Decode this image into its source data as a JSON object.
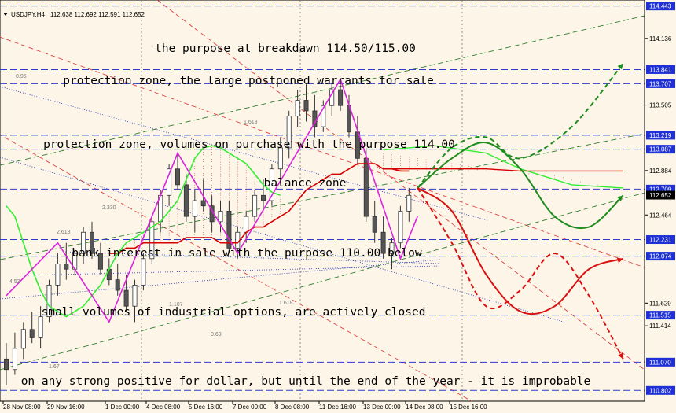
{
  "header": {
    "symbol_label": "USDJPY,H4",
    "ohlc_label": "112.638 112.692 112.591 112.652"
  },
  "annotations": [
    "the purpose at breakdawn 114.50/115.00",
    "protection zone, the large postponed warrants for sale",
    "protection zone, volumes on purchase with the purpose 114.00",
    "balance zone",
    "bank interest in sale with the purpose 110.00 below",
    "small volumes of industrial options, are actively closed",
    "on any strong positive for dollar, but until the end of the year - it is improbable"
  ],
  "fib_labels": [
    "0.95",
    "1.618",
    "2.330",
    "2.618",
    "4.53",
    "1.618",
    "0.69",
    "1.67",
    "1.107"
  ],
  "colors": {
    "background": "#fdf6e8",
    "level_line": "#2b3ccc",
    "level_badge": "#1f31d6",
    "price_badge": "#000000",
    "bull_candle": "#ffffff",
    "bear_candle": "#555555",
    "kijun": "#d80000",
    "tenkan": "#33ee33",
    "wave": "#dd22dd",
    "projection_up": "#1e8c1e",
    "projection_down": "#d81010",
    "trend_red": "#e04040",
    "trend_green": "#2e7d2e",
    "trend_blue": "#3344bb"
  },
  "chart_data": {
    "type": "candlestick",
    "symbol": "USDJPY",
    "timeframe": "H4",
    "price_axis": {
      "ylim": [
        110.7,
        114.5
      ],
      "ticks": [
        114.443,
        114.136,
        113.841,
        113.707,
        113.505,
        113.219,
        113.087,
        112.884,
        112.709,
        112.652,
        112.464,
        112.231,
        112.074,
        111.629,
        111.515,
        111.414,
        111.07,
        110.802
      ]
    },
    "time_labels": [
      "28 Nov 08:00",
      "29 Nov 16:00",
      "1 Dec 00:00",
      "4 Dec 08:00",
      "5 Dec 16:00",
      "7 Dec 00:00",
      "8 Dec 08:00",
      "11 Dec 16:00",
      "13 Dec 00:00",
      "14 Dec 08:00",
      "15 Dec 16:00"
    ],
    "levels": [
      114.443,
      113.841,
      113.707,
      113.219,
      113.087,
      112.709,
      112.231,
      112.074,
      111.515,
      111.07,
      110.802
    ],
    "last_price": 112.652,
    "candles": [
      {
        "o": 111.1,
        "h": 111.25,
        "l": 110.85,
        "c": 111.0
      },
      {
        "o": 111.0,
        "h": 111.35,
        "l": 110.95,
        "c": 111.2
      },
      {
        "o": 111.2,
        "h": 111.45,
        "l": 111.1,
        "c": 111.38
      },
      {
        "o": 111.38,
        "h": 111.55,
        "l": 111.25,
        "c": 111.3
      },
      {
        "o": 111.3,
        "h": 111.6,
        "l": 111.2,
        "c": 111.5
      },
      {
        "o": 111.5,
        "h": 111.85,
        "l": 111.45,
        "c": 111.8
      },
      {
        "o": 111.8,
        "h": 112.1,
        "l": 111.7,
        "c": 112.0
      },
      {
        "o": 112.0,
        "h": 112.2,
        "l": 111.85,
        "c": 111.95
      },
      {
        "o": 111.95,
        "h": 112.15,
        "l": 111.9,
        "c": 112.1
      },
      {
        "o": 112.1,
        "h": 112.35,
        "l": 112.0,
        "c": 112.3
      },
      {
        "o": 112.3,
        "h": 112.4,
        "l": 112.05,
        "c": 112.1
      },
      {
        "o": 112.1,
        "h": 112.2,
        "l": 111.9,
        "c": 111.95
      },
      {
        "o": 111.95,
        "h": 112.05,
        "l": 111.8,
        "c": 111.85
      },
      {
        "o": 111.85,
        "h": 112.0,
        "l": 111.7,
        "c": 111.75
      },
      {
        "o": 111.75,
        "h": 111.9,
        "l": 111.55,
        "c": 111.6
      },
      {
        "o": 111.6,
        "h": 111.85,
        "l": 111.45,
        "c": 111.8
      },
      {
        "o": 111.8,
        "h": 112.1,
        "l": 111.75,
        "c": 112.05
      },
      {
        "o": 112.05,
        "h": 112.45,
        "l": 112.0,
        "c": 112.4
      },
      {
        "o": 112.4,
        "h": 112.7,
        "l": 112.3,
        "c": 112.65
      },
      {
        "o": 112.65,
        "h": 112.95,
        "l": 112.55,
        "c": 112.9
      },
      {
        "o": 112.9,
        "h": 113.05,
        "l": 112.7,
        "c": 112.75
      },
      {
        "o": 112.75,
        "h": 112.85,
        "l": 112.4,
        "c": 112.45
      },
      {
        "o": 112.45,
        "h": 112.7,
        "l": 112.3,
        "c": 112.6
      },
      {
        "o": 112.6,
        "h": 112.8,
        "l": 112.5,
        "c": 112.55
      },
      {
        "o": 112.55,
        "h": 112.65,
        "l": 112.3,
        "c": 112.4
      },
      {
        "o": 112.4,
        "h": 112.6,
        "l": 112.3,
        "c": 112.5
      },
      {
        "o": 112.5,
        "h": 112.6,
        "l": 112.1,
        "c": 112.15
      },
      {
        "o": 112.15,
        "h": 112.35,
        "l": 112.05,
        "c": 112.3
      },
      {
        "o": 112.3,
        "h": 112.5,
        "l": 112.2,
        "c": 112.45
      },
      {
        "o": 112.45,
        "h": 112.7,
        "l": 112.4,
        "c": 112.65
      },
      {
        "o": 112.65,
        "h": 112.8,
        "l": 112.5,
        "c": 112.6
      },
      {
        "o": 112.6,
        "h": 112.95,
        "l": 112.55,
        "c": 112.9
      },
      {
        "o": 112.9,
        "h": 113.2,
        "l": 112.8,
        "c": 113.1
      },
      {
        "o": 113.1,
        "h": 113.45,
        "l": 113.0,
        "c": 113.4
      },
      {
        "o": 113.4,
        "h": 113.65,
        "l": 113.3,
        "c": 113.55
      },
      {
        "o": 113.55,
        "h": 113.7,
        "l": 113.35,
        "c": 113.45
      },
      {
        "o": 113.45,
        "h": 113.6,
        "l": 113.2,
        "c": 113.3
      },
      {
        "o": 113.3,
        "h": 113.55,
        "l": 113.25,
        "c": 113.5
      },
      {
        "o": 113.5,
        "h": 113.72,
        "l": 113.4,
        "c": 113.65
      },
      {
        "o": 113.65,
        "h": 113.75,
        "l": 113.45,
        "c": 113.5
      },
      {
        "o": 113.5,
        "h": 113.6,
        "l": 113.2,
        "c": 113.25
      },
      {
        "o": 113.25,
        "h": 113.4,
        "l": 112.95,
        "c": 113.0
      },
      {
        "o": 113.0,
        "h": 113.1,
        "l": 112.4,
        "c": 112.45
      },
      {
        "o": 112.45,
        "h": 112.6,
        "l": 112.2,
        "c": 112.3
      },
      {
        "o": 112.3,
        "h": 112.45,
        "l": 112.05,
        "c": 112.1
      },
      {
        "o": 112.1,
        "h": 112.25,
        "l": 111.95,
        "c": 112.2
      },
      {
        "o": 112.2,
        "h": 112.55,
        "l": 112.15,
        "c": 112.5
      },
      {
        "o": 112.5,
        "h": 112.72,
        "l": 112.4,
        "c": 112.65
      }
    ],
    "kijun_line": [
      112.1,
      112.1,
      112.15,
      112.15,
      112.2,
      112.2,
      112.2,
      112.2,
      112.2,
      112.25,
      112.25,
      112.25,
      112.25,
      112.2,
      112.2,
      112.2,
      112.3,
      112.35,
      112.35,
      112.4,
      112.45,
      112.5,
      112.6,
      112.7,
      112.75,
      112.8,
      112.85,
      112.85,
      112.9,
      112.95,
      112.95,
      112.95,
      112.9,
      112.9,
      112.88,
      112.88
    ],
    "tenkan_line": [
      112.55,
      112.45,
      112.2,
      111.95,
      111.75,
      111.6,
      111.55,
      111.5,
      111.55,
      111.6,
      111.7,
      111.8,
      111.95,
      112.1,
      112.2,
      112.25,
      112.3,
      112.35,
      112.4,
      112.5,
      112.6,
      112.8,
      113.0,
      113.1,
      113.12,
      113.1,
      113.05,
      113.0,
      112.95,
      112.85,
      112.75,
      112.68,
      112.65
    ],
    "wave_points": [
      [
        0,
        111.7
      ],
      [
        6,
        112.2
      ],
      [
        12,
        111.45
      ],
      [
        20,
        113.05
      ],
      [
        27,
        112.1
      ],
      [
        39,
        113.75
      ],
      [
        46,
        112.05
      ],
      [
        48,
        112.45
      ]
    ],
    "projections": {
      "green_dashed": [
        [
          48,
          112.72
        ],
        [
          52,
          113.1
        ],
        [
          56,
          113.2
        ],
        [
          60,
          113.0
        ],
        [
          66,
          113.3
        ],
        [
          72,
          113.9
        ]
      ],
      "green_solid": [
        [
          48,
          112.72
        ],
        [
          52,
          113.0
        ],
        [
          56,
          113.15
        ],
        [
          60,
          112.9
        ],
        [
          64,
          112.45
        ],
        [
          68,
          112.35
        ],
        [
          72,
          112.65
        ]
      ],
      "red_dashed": [
        [
          48,
          112.72
        ],
        [
          52,
          112.2
        ],
        [
          56,
          111.6
        ],
        [
          60,
          111.75
        ],
        [
          64,
          112.1
        ],
        [
          68,
          111.7
        ],
        [
          72,
          111.1
        ]
      ],
      "red_solid": [
        [
          48,
          112.72
        ],
        [
          52,
          112.5
        ],
        [
          56,
          111.9
        ],
        [
          60,
          111.55
        ],
        [
          64,
          111.6
        ],
        [
          68,
          111.95
        ],
        [
          72,
          112.05
        ]
      ]
    }
  }
}
